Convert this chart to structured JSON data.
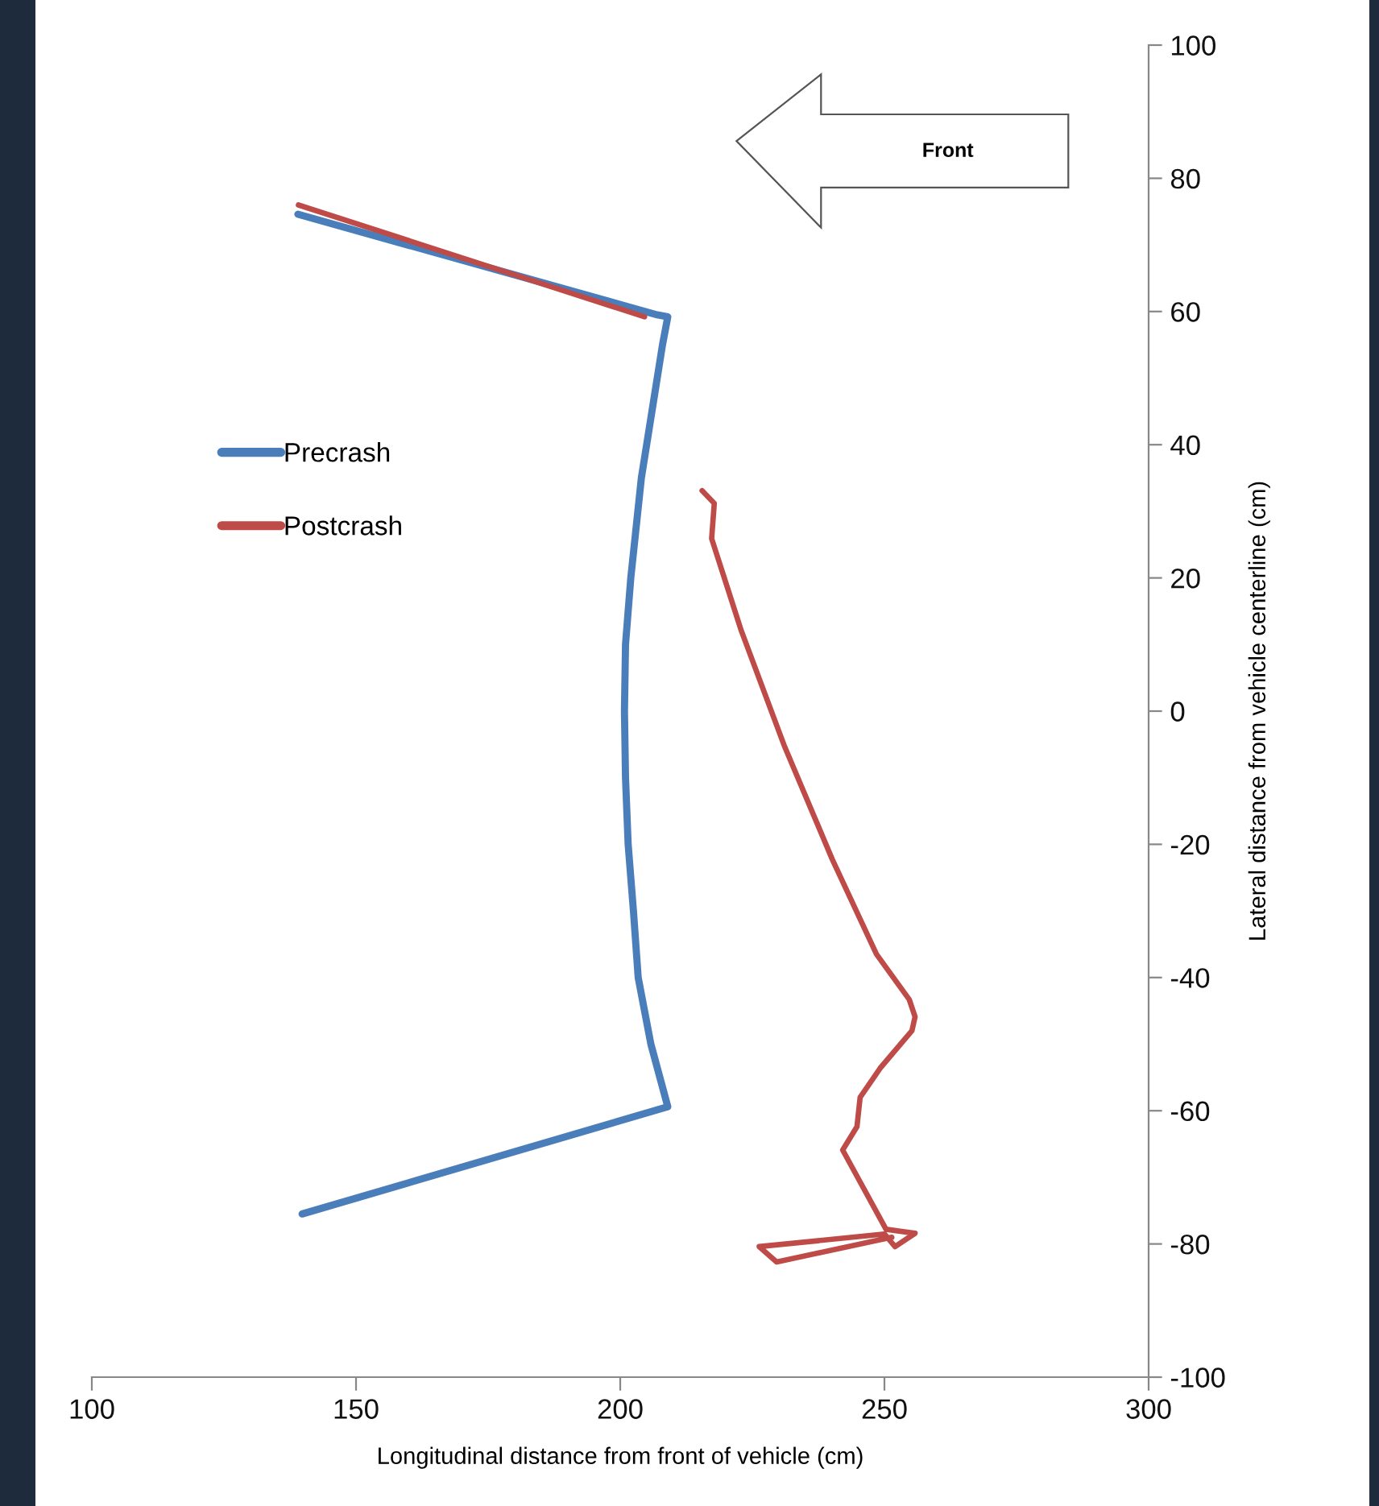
{
  "chart_data": {
    "type": "line",
    "xlabel": "Longitudinal distance from front of vehicle (cm)",
    "ylabel": "Lateral distance from vehicle centerline (cm)",
    "xlim": [
      100,
      300
    ],
    "xticks": [
      100,
      150,
      200,
      250,
      300
    ],
    "ylim": [
      -100,
      100
    ],
    "yticks": [
      -100,
      -80,
      -60,
      -40,
      -20,
      0,
      20,
      40,
      60,
      80,
      100
    ],
    "grid": false,
    "legend": "left",
    "line_style": "solid",
    "marker": "none",
    "annotations": [
      "Front"
    ],
    "series": [
      {
        "name": "Precrash",
        "color": "#4a7ebb",
        "x": [
          139,
          207,
          209,
          208,
          206,
          204,
          202,
          201,
          200.8,
          201,
          201.5,
          202.5,
          203.4,
          205.8,
          209,
          139.8
        ],
        "values": [
          74.6,
          59.5,
          59.2,
          55,
          45,
          35,
          20,
          10,
          0,
          -10,
          -20,
          -30,
          -40,
          -50,
          -59.4,
          -75.5
        ]
      },
      {
        "name": "Postcrash",
        "color": "#be4b48",
        "x": [
          139.1,
          204.6,
          null,
          215.5,
          217.8,
          217.3,
          222.9,
          231,
          240.1,
          248.5,
          254.7,
          255.8,
          255.2,
          249.2,
          245.4,
          244.8,
          242.1,
          250.3,
          255.8,
          252,
          250,
          226.3,
          229.6,
          251.4
        ],
        "values": [
          76,
          59.2,
          null,
          33.1,
          31.2,
          25.9,
          12.1,
          -5.1,
          -22.2,
          -36.5,
          -43.3,
          -45.9,
          -48,
          -53.6,
          -58,
          -62.4,
          -65.9,
          -77.8,
          -78.4,
          -80.4,
          -78.5,
          -80.4,
          -82.7,
          -79
        ]
      }
    ]
  }
}
